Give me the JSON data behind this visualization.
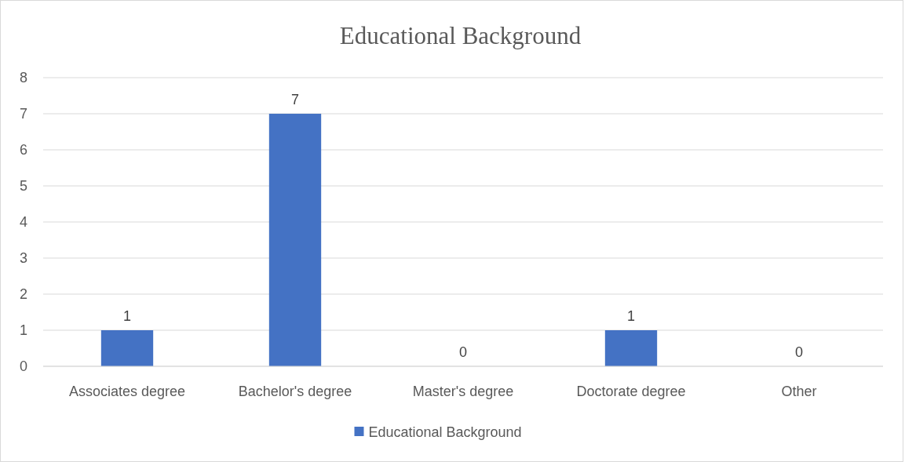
{
  "chart_data": {
    "type": "bar",
    "title": "Educational Background",
    "categories": [
      "Associates degree",
      "Bachelor's degree",
      "Master's degree",
      "Doctorate degree",
      "Other"
    ],
    "series": [
      {
        "name": "Educational Background",
        "color": "#4472c4",
        "values": [
          1,
          7,
          0,
          1,
          0
        ]
      }
    ],
    "ylim": [
      0,
      8
    ],
    "yticks": [
      0,
      1,
      2,
      3,
      4,
      5,
      6,
      7,
      8
    ],
    "grid": "y",
    "legend": "bottom",
    "data_labels": true
  }
}
